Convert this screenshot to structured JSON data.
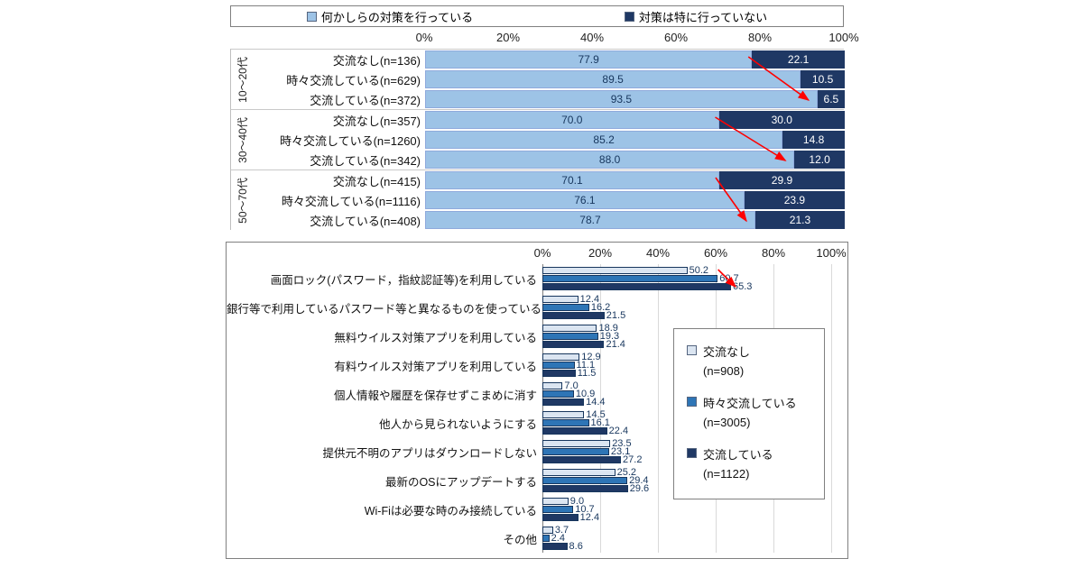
{
  "page": {
    "background": "#ffffff",
    "accent_arrow_color": "#ff0000"
  },
  "chart_data": [
    {
      "type": "bar",
      "variant": "stacked-horizontal",
      "legend_position": "top",
      "xlim": [
        0,
        100
      ],
      "grid": false,
      "axis_ticks": [
        "0%",
        "20%",
        "40%",
        "60%",
        "80%",
        "100%"
      ],
      "series": [
        {
          "name": "何かしらの対策を行っている",
          "color": "#9dc3e6"
        },
        {
          "name": "対策は特に行っていない",
          "color": "#1f3864"
        }
      ],
      "groups": [
        {
          "group": "10～20代",
          "rows": [
            {
              "label": "交流なし(n=136)",
              "values": [
                77.9,
                22.1
              ]
            },
            {
              "label": "時々交流している(n=629)",
              "values": [
                89.5,
                10.5
              ]
            },
            {
              "label": "交流している(n=372)",
              "values": [
                93.5,
                6.5
              ]
            }
          ]
        },
        {
          "group": "30～40代",
          "rows": [
            {
              "label": "交流なし(n=357)",
              "values": [
                70.0,
                30.0
              ]
            },
            {
              "label": "時々交流している(n=1260)",
              "values": [
                85.2,
                14.8
              ]
            },
            {
              "label": "交流している(n=342)",
              "values": [
                88.0,
                12.0
              ]
            }
          ]
        },
        {
          "group": "50～70代",
          "rows": [
            {
              "label": "交流なし(n=415)",
              "values": [
                70.1,
                29.9
              ]
            },
            {
              "label": "時々交流している(n=1116)",
              "values": [
                76.1,
                23.9
              ]
            },
            {
              "label": "交流している(n=408)",
              "values": [
                78.7,
                21.3
              ]
            }
          ]
        }
      ],
      "annotations": [
        {
          "type": "arrow",
          "color": "#ff0000",
          "note": "per age group: boundary of row 1 to boundary of row 3"
        }
      ]
    },
    {
      "type": "bar",
      "variant": "grouped-horizontal",
      "legend_position": "right-inside",
      "xlim": [
        0,
        100
      ],
      "grid": true,
      "axis_ticks": [
        "0%",
        "20%",
        "40%",
        "60%",
        "80%",
        "100%"
      ],
      "series": [
        {
          "name": "交流なし",
          "n_label": "(n=908)",
          "color": "#dbe5f1"
        },
        {
          "name": "時々交流している",
          "n_label": "(n=3005)",
          "color": "#2e75b6"
        },
        {
          "name": "交流している",
          "n_label": "(n=1122)",
          "color": "#1f3864"
        }
      ],
      "categories": [
        {
          "label": "画面ロック(パスワード，指紋認証等)を利用している",
          "values": [
            50.2,
            60.7,
            65.3
          ]
        },
        {
          "label": "銀行等で利用しているパスワード等と異なるものを使っている",
          "values": [
            12.4,
            16.2,
            21.5
          ]
        },
        {
          "label": "無料ウイルス対策アプリを利用している",
          "values": [
            18.9,
            19.3,
            21.4
          ]
        },
        {
          "label": "有料ウイルス対策アプリを利用している",
          "values": [
            12.9,
            11.1,
            11.5
          ]
        },
        {
          "label": "個人情報や履歴を保存せずこまめに消す",
          "values": [
            7.0,
            10.9,
            14.4
          ]
        },
        {
          "label": "他人から見られないようにする",
          "values": [
            14.5,
            16.1,
            22.4
          ]
        },
        {
          "label": "提供元不明のアプリはダウンロードしない",
          "values": [
            23.5,
            23.1,
            27.2
          ]
        },
        {
          "label": "最新のOSにアップデートする",
          "values": [
            25.2,
            29.4,
            29.6
          ]
        },
        {
          "label": "Wi-Fiは必要な時のみ接続している",
          "values": [
            9.0,
            10.7,
            12.4
          ]
        },
        {
          "label": "その他",
          "values": [
            3.7,
            2.4,
            8.6
          ]
        }
      ],
      "annotations": [
        {
          "type": "arrow",
          "color": "#ff0000",
          "note": "first category: end of series-1 bar to end of series-3 bar"
        }
      ]
    }
  ]
}
